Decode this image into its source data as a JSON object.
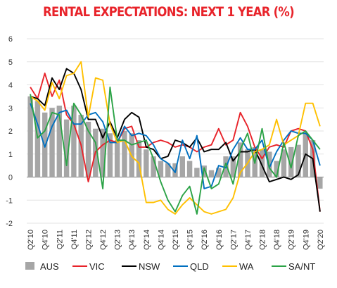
{
  "chart_data": {
    "type": "bar+line",
    "title": "RENTAL EXPECTATIONS: NEXT 1 YEAR (%)",
    "xlabel": "",
    "ylabel": "",
    "ylim": [
      -2,
      6
    ],
    "yticks": [
      "-2",
      "-1",
      "0",
      "1",
      "2",
      "3",
      "4",
      "5",
      "6"
    ],
    "xtick_labels": [
      "Q2'10",
      "Q4'10",
      "Q2'11",
      "Q4'11",
      "Q2'12",
      "Q4'12",
      "Q2'13",
      "Q4'13",
      "Q2'14",
      "Q4'14",
      "Q2'15",
      "Q4'15",
      "Q2'16",
      "Q4'16",
      "Q2'17",
      "Q4'17",
      "Q2'18",
      "Q4'18",
      "Q2'19",
      "Q4'19",
      "Q2'20"
    ],
    "x": [
      "Q2'10",
      "Q3'10",
      "Q4'10",
      "Q1'11",
      "Q2'11",
      "Q3'11",
      "Q4'11",
      "Q1'12",
      "Q2'12",
      "Q3'12",
      "Q4'12",
      "Q1'13",
      "Q2'13",
      "Q3'13",
      "Q4'13",
      "Q1'14",
      "Q2'14",
      "Q3'14",
      "Q4'14",
      "Q1'15",
      "Q2'15",
      "Q3'15",
      "Q4'15",
      "Q1'16",
      "Q2'16",
      "Q3'16",
      "Q4'16",
      "Q1'17",
      "Q2'17",
      "Q3'17",
      "Q4'17",
      "Q1'18",
      "Q2'18",
      "Q3'18",
      "Q4'18",
      "Q1'19",
      "Q2'19",
      "Q3'19",
      "Q4'19",
      "Q1'20",
      "Q2'20"
    ],
    "legend_position": "bottom",
    "series": [
      {
        "name": "AUS",
        "kind": "bar",
        "color": "#a6a6a6",
        "values": [
          3.5,
          3.3,
          2.8,
          3.0,
          3.1,
          2.5,
          3.1,
          2.7,
          2.4,
          2.1,
          2.1,
          1.9,
          1.6,
          2.0,
          1.9,
          1.6,
          1.2,
          0.9,
          0.7,
          0.6,
          0.6,
          0.9,
          0.7,
          0.4,
          0.5,
          0.3,
          0.4,
          0.9,
          0.9,
          1.5,
          1.2,
          1.3,
          1.2,
          1.1,
          0.7,
          1.2,
          1.3,
          1.4,
          1.9,
          1.6,
          -0.5
        ]
      },
      {
        "name": "VIC",
        "kind": "line",
        "color": "#e8232a",
        "values": [
          3.9,
          3.4,
          4.5,
          3.5,
          4.2,
          2.7,
          2.3,
          1.4,
          -0.2,
          1.1,
          1.4,
          1.6,
          1.5,
          2.1,
          2.2,
          1.3,
          1.3,
          1.5,
          1.6,
          1.5,
          1.3,
          1.4,
          1.3,
          1.1,
          1.3,
          1.4,
          2.1,
          1.4,
          1.6,
          2.8,
          2.2,
          1.3,
          0.8,
          1.3,
          1.4,
          1.3,
          2.0,
          2.1,
          2.0,
          1.2,
          -1.5
        ]
      },
      {
        "name": "NSW",
        "kind": "line",
        "color": "#000000",
        "values": [
          3.5,
          3.4,
          3.1,
          4.3,
          3.8,
          4.7,
          4.5,
          3.8,
          2.5,
          2.5,
          1.7,
          2.4,
          1.7,
          2.5,
          2.8,
          2.6,
          1.3,
          1.2,
          0.8,
          0.9,
          1.6,
          1.5,
          1.3,
          1.7,
          1.1,
          1.2,
          1.2,
          1.5,
          0.7,
          1.1,
          1.1,
          1.2,
          0.5,
          -0.2,
          -0.1,
          0.0,
          -0.1,
          0.1,
          1.0,
          0.8,
          -1.5
        ]
      },
      {
        "name": "QLD",
        "kind": "line",
        "color": "#0070c0",
        "values": [
          3.2,
          2.3,
          1.3,
          2.2,
          2.8,
          2.9,
          2.3,
          2.3,
          2.7,
          2.8,
          2.4,
          1.5,
          1.5,
          2.2,
          1.8,
          1.9,
          1.8,
          1.4,
          0.8,
          0.6,
          0.2,
          1.6,
          0.8,
          1.8,
          -0.5,
          -0.4,
          0.5,
          0.4,
          1.2,
          1.7,
          1.2,
          1.2,
          1.6,
          0.4,
          1.1,
          1.6,
          2.0,
          1.9,
          1.9,
          1.6,
          0.5
        ]
      },
      {
        "name": "WA",
        "kind": "line",
        "color": "#ffc000",
        "values": [
          3.5,
          3.3,
          2.9,
          4.1,
          3.4,
          4.4,
          4.5,
          5.0,
          2.6,
          4.3,
          4.2,
          2.3,
          1.5,
          1.6,
          0.9,
          0.6,
          -1.1,
          -1.1,
          -1.0,
          -1.4,
          -1.6,
          -1.2,
          -0.9,
          -1.2,
          -1.5,
          -1.6,
          -1.5,
          -1.4,
          -0.9,
          0.2,
          0.6,
          1.1,
          1.2,
          1.4,
          2.5,
          1.4,
          1.6,
          1.8,
          3.2,
          3.2,
          2.2
        ]
      },
      {
        "name": "SA/NT",
        "kind": "line",
        "color": "#2ca347",
        "values": [
          3.6,
          1.7,
          2.0,
          2.8,
          2.7,
          0.5,
          3.2,
          2.7,
          2.0,
          1.5,
          -0.5,
          3.9,
          1.6,
          1.6,
          1.4,
          1.5,
          1.6,
          0.8,
          -0.2,
          -1.0,
          -1.5,
          -0.8,
          -0.4,
          -1.6,
          0.4,
          -0.5,
          -0.3,
          0.6,
          -0.3,
          1.2,
          1.9,
          0.6,
          2.1,
          0.4,
          0.0,
          1.5,
          0.4,
          1.8,
          2.0,
          1.6,
          1.2
        ]
      }
    ]
  }
}
